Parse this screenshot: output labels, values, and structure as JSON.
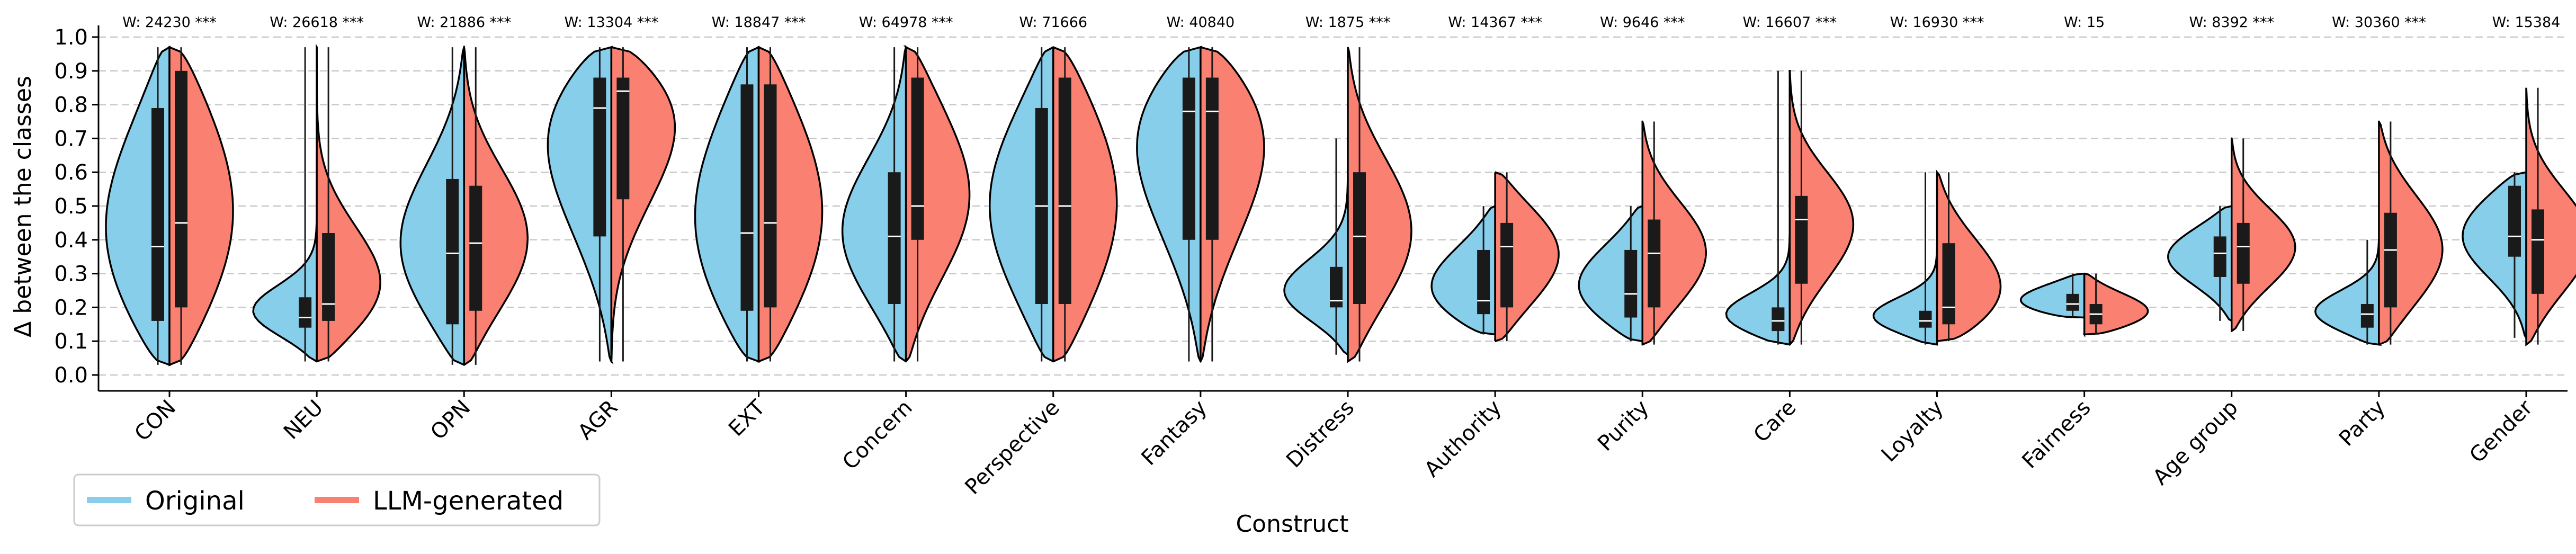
{
  "chart_data": {
    "type": "violin",
    "xlabel": "Construct",
    "ylabel": "Δ between the classes",
    "ylim": [
      0,
      1
    ],
    "yticks": [
      "0.0",
      "0.1",
      "0.2",
      "0.3",
      "0.4",
      "0.5",
      "0.6",
      "0.7",
      "0.8",
      "0.9",
      "1.0"
    ],
    "y_axis_scale": "rank-spaced (ticks equally spaced)",
    "grid": "horizontal dashed",
    "legend": {
      "placement": "bottom-left",
      "entries": [
        {
          "label": "Original",
          "color": "#87CEEB"
        },
        {
          "label": "LLM-generated",
          "color": "#FA8072"
        }
      ]
    },
    "colors": {
      "original": "#87CEEB",
      "llm": "#FA8072"
    },
    "categories": [
      "CON",
      "NEU",
      "OPN",
      "AGR",
      "EXT",
      "Concern",
      "Perspective",
      "Fantasy",
      "Distress",
      "Authority",
      "Purity",
      "Care",
      "Loyalty",
      "Fairness",
      "Age group",
      "Party",
      "Gender"
    ],
    "annotations": [
      "W: 24230 ***",
      "W: 26618 ***",
      "W: 21886 ***",
      "W: 13304 ***",
      "W: 18847 ***",
      "W: 64978 ***",
      "W: 71666",
      "W: 40840",
      "W: 1875 ***",
      "W: 14367 ***",
      "W: 9646 ***",
      "W: 16607 ***",
      "W: 16930 ***",
      "W: 15",
      "W: 8392 ***",
      "W: 30360 ***",
      "W: 15384"
    ],
    "series": [
      {
        "name": "Original",
        "side": "left",
        "median": [
          0.38,
          0.17,
          0.36,
          0.79,
          0.42,
          0.41,
          0.5,
          0.78,
          0.22,
          0.22,
          0.24,
          0.16,
          0.16,
          0.21,
          0.36,
          0.18,
          0.41
        ],
        "q1": [
          0.16,
          0.14,
          0.15,
          0.41,
          0.19,
          0.21,
          0.21,
          0.4,
          0.2,
          0.18,
          0.17,
          0.13,
          0.14,
          0.19,
          0.29,
          0.14,
          0.35
        ],
        "q3": [
          0.79,
          0.23,
          0.58,
          0.88,
          0.86,
          0.6,
          0.79,
          0.88,
          0.32,
          0.37,
          0.37,
          0.2,
          0.19,
          0.24,
          0.41,
          0.21,
          0.56
        ],
        "min": [
          0.03,
          0.04,
          0.03,
          0.04,
          0.04,
          0.04,
          0.04,
          0.04,
          0.06,
          0.12,
          0.1,
          0.09,
          0.09,
          0.17,
          0.16,
          0.09,
          0.11
        ],
        "max": [
          0.97,
          0.97,
          0.97,
          0.97,
          0.97,
          0.97,
          0.97,
          0.97,
          0.7,
          0.5,
          0.5,
          0.9,
          0.6,
          0.3,
          0.5,
          0.4,
          0.6
        ]
      },
      {
        "name": "LLM-generated",
        "side": "right",
        "median": [
          0.45,
          0.21,
          0.39,
          0.84,
          0.45,
          0.5,
          0.5,
          0.78,
          0.41,
          0.38,
          0.36,
          0.46,
          0.2,
          0.18,
          0.38,
          0.37,
          0.4
        ],
        "q1": [
          0.2,
          0.16,
          0.19,
          0.52,
          0.2,
          0.4,
          0.21,
          0.4,
          0.21,
          0.2,
          0.2,
          0.27,
          0.15,
          0.15,
          0.27,
          0.2,
          0.24
        ],
        "q3": [
          0.9,
          0.42,
          0.56,
          0.88,
          0.86,
          0.88,
          0.88,
          0.88,
          0.6,
          0.45,
          0.46,
          0.53,
          0.39,
          0.21,
          0.45,
          0.48,
          0.49
        ],
        "min": [
          0.03,
          0.04,
          0.03,
          0.04,
          0.04,
          0.04,
          0.04,
          0.04,
          0.04,
          0.1,
          0.09,
          0.09,
          0.1,
          0.12,
          0.13,
          0.09,
          0.09
        ],
        "max": [
          0.97,
          0.97,
          0.97,
          0.97,
          0.97,
          0.97,
          0.97,
          0.97,
          0.97,
          0.6,
          0.75,
          0.9,
          0.6,
          0.3,
          0.7,
          0.75,
          0.85
        ]
      }
    ]
  }
}
